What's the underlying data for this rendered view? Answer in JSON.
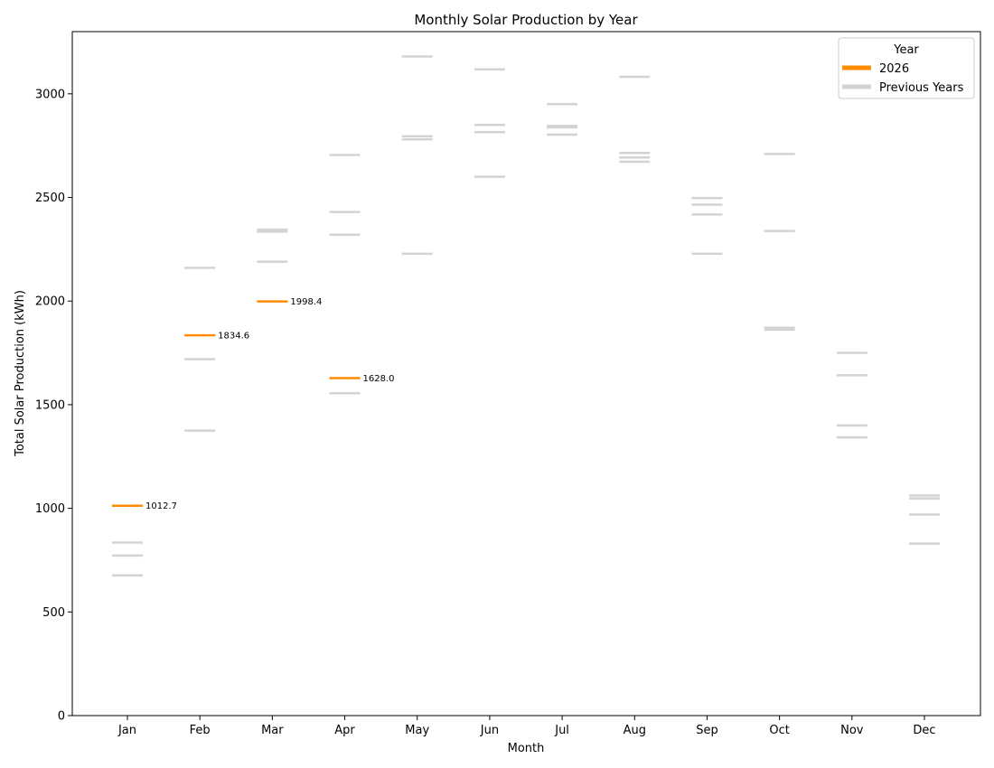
{
  "chart_data": {
    "type": "line",
    "title": "Monthly Solar Production by Year",
    "xlabel": "Month",
    "ylabel": "Total Solar Production (kWh)",
    "ylim": [
      0,
      3300
    ],
    "yticks": [
      0,
      500,
      1000,
      1500,
      2000,
      2500,
      3000
    ],
    "categories": [
      "Jan",
      "Feb",
      "Mar",
      "Apr",
      "May",
      "Jun",
      "Jul",
      "Aug",
      "Sep",
      "Oct",
      "Nov",
      "Dec"
    ],
    "grid": false,
    "legend": {
      "title": "Year",
      "placement": "top-right"
    },
    "series": [
      {
        "name": "2026",
        "color": "#ff8c00",
        "values": [
          1012.7,
          1834.6,
          1998.4,
          1628.0,
          null,
          null,
          null,
          null,
          null,
          null,
          null,
          null
        ],
        "labels": [
          "1012.7",
          "1834.6",
          "1998.4",
          "1628.0"
        ]
      },
      {
        "name": "Previous Years",
        "color": "#d3d3d3",
        "monthly_values": [
          [
            835,
            772,
            676
          ],
          [
            2160,
            1720,
            1375
          ],
          [
            2345,
            2335,
            2190
          ],
          [
            2705,
            2430,
            2320,
            1555
          ],
          [
            3180,
            2795,
            2780,
            2228
          ],
          [
            3118,
            2850,
            2815,
            2600
          ],
          [
            2950,
            2845,
            2838,
            2803
          ],
          [
            3082,
            2715,
            2693,
            2672
          ],
          [
            2497,
            2465,
            2418,
            2228
          ],
          [
            2710,
            2338,
            1872,
            1862
          ],
          [
            1750,
            1642,
            1400,
            1342
          ],
          [
            1062,
            1048,
            970,
            830
          ]
        ]
      }
    ]
  }
}
